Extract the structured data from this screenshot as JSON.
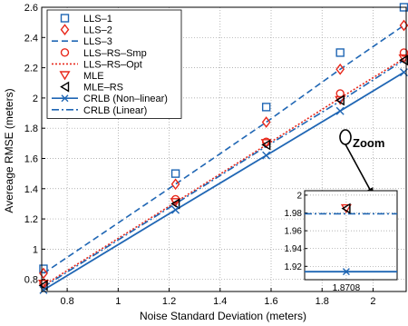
{
  "chart_data": {
    "type": "line",
    "xlabel": "Noise Standard Deviation (meters)",
    "ylabel": "Avereage RMSE (meters)",
    "xlim": [
      0.7,
      2.13
    ],
    "ylim": [
      0.72,
      2.6
    ],
    "xticks": [
      "0.8",
      "1",
      "1.2",
      "1.4",
      "1.6",
      "1.8",
      "2"
    ],
    "yticks": [
      "0.8",
      "1",
      "1.2",
      "1.4",
      "1.6",
      "1.8",
      "2",
      "2.2",
      "2.4",
      "2.6"
    ],
    "grid": true,
    "legend_position": "top-left",
    "x": [
      0.707,
      1.225,
      1.581,
      1.871,
      2.121
    ],
    "series": [
      {
        "name": "LLS–1",
        "style": "marker",
        "marker": "square",
        "color": "#1f66b4",
        "values": [
          0.87,
          1.5,
          1.94,
          2.3,
          2.6
        ]
      },
      {
        "name": "LLS–2",
        "style": "marker",
        "marker": "diamond",
        "color": "#e8291c",
        "values": [
          0.84,
          1.43,
          1.84,
          2.19,
          2.48
        ]
      },
      {
        "name": "LLS–3",
        "style": "dashed",
        "color": "#1f66b4",
        "values": [
          0.84,
          1.43,
          1.84,
          2.19,
          2.48
        ]
      },
      {
        "name": "LLS–RS–Smp",
        "style": "marker",
        "marker": "circle",
        "color": "#e8291c",
        "values": [
          0.77,
          1.33,
          1.71,
          2.03,
          2.3
        ]
      },
      {
        "name": "LLS–RS–Opt",
        "style": "dotted",
        "color": "#e8291c",
        "values": [
          0.76,
          1.31,
          1.69,
          2.0,
          2.26
        ]
      },
      {
        "name": "MLE",
        "style": "marker",
        "marker": "triangle-down",
        "color": "#e8291c",
        "values": [
          0.77,
          1.31,
          1.7,
          1.985,
          2.26
        ]
      },
      {
        "name": "MLE–RS",
        "style": "marker",
        "marker": "triangle-left",
        "color": "#000000",
        "values": [
          0.76,
          1.3,
          1.69,
          1.985,
          2.25
        ]
      },
      {
        "name": "CRLB (Non–linear)",
        "style": "solid-x",
        "color": "#1f66b4",
        "values": [
          0.73,
          1.26,
          1.62,
          1.914,
          2.17
        ]
      },
      {
        "name": "CRLB (Linear)",
        "style": "dashdot",
        "color": "#1f66b4",
        "values": [
          0.75,
          1.3,
          1.68,
          1.979,
          2.25
        ]
      }
    ],
    "annotation": {
      "text": "Zoom"
    },
    "inset": {
      "xtick": "1.8708",
      "ylim": [
        1.905,
        2.005
      ],
      "yticks": [
        "2",
        "1.98",
        "1.96",
        "1.94",
        "1.92"
      ],
      "x": 1.8708,
      "mle_value": 1.985,
      "mle_rs_value": 1.985,
      "crlb_linear": 1.979,
      "crlb_nonlinear": 1.914
    }
  }
}
